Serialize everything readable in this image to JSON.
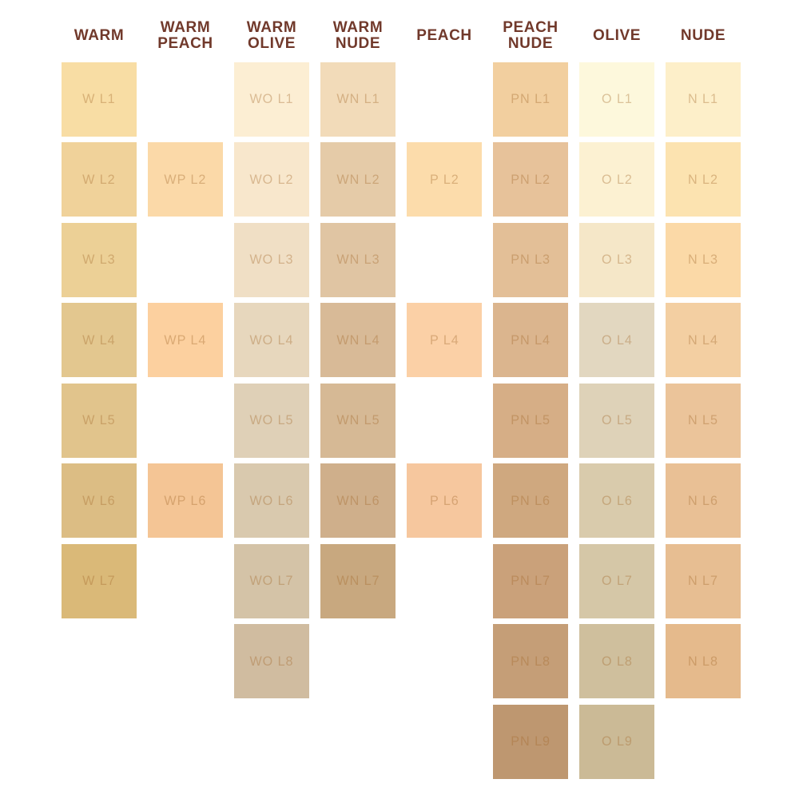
{
  "page": {
    "background": "#FFFFFF",
    "header_text_color": "#71392B",
    "swatch_label_color": "rgba(163,104,44,0.38)"
  },
  "chart_data": {
    "type": "table",
    "description": "Foundation shade swatch grid: 8 undertone family columns, lightness levels L1 (lightest) to L9 (deepest) top to bottom",
    "legend_position": "none",
    "grid": "off",
    "columns": [
      {
        "id": "warm",
        "header": "WARM",
        "swatches": [
          {
            "label": "W L1",
            "level": 1,
            "hex": "#F8DDA4"
          },
          {
            "label": "W L2",
            "level": 2,
            "hex": "#F0D29A"
          },
          {
            "label": "W L3",
            "level": 3,
            "hex": "#ECD096"
          },
          {
            "label": "W L4",
            "level": 4,
            "hex": "#E3C78F"
          },
          {
            "label": "W L5",
            "level": 5,
            "hex": "#E1C48C"
          },
          {
            "label": "W L6",
            "level": 6,
            "hex": "#DCBD84"
          },
          {
            "label": "W L7",
            "level": 7,
            "hex": "#DAB978"
          }
        ]
      },
      {
        "id": "warm-peach",
        "header": "WARM\nPEACH",
        "swatches": [
          {
            "label": "WP L2",
            "level": 2,
            "hex": "#FBD9A8"
          },
          {
            "label": "WP L4",
            "level": 4,
            "hex": "#FCD09F"
          },
          {
            "label": "WP L6",
            "level": 6,
            "hex": "#F4C595"
          }
        ]
      },
      {
        "id": "warm-olive",
        "header": "WARM\nOLIVE",
        "swatches": [
          {
            "label": "WO L1",
            "level": 1,
            "hex": "#FCEED3"
          },
          {
            "label": "WO L2",
            "level": 2,
            "hex": "#F8E7CC"
          },
          {
            "label": "WO L3",
            "level": 3,
            "hex": "#F0DFC5"
          },
          {
            "label": "WO L4",
            "level": 4,
            "hex": "#E7D7BD"
          },
          {
            "label": "WO L5",
            "level": 5,
            "hex": "#DFD0B7"
          },
          {
            "label": "WO L6",
            "level": 6,
            "hex": "#D9C9AE"
          },
          {
            "label": "WO L7",
            "level": 7,
            "hex": "#D4C3A7"
          },
          {
            "label": "WO L8",
            "level": 8,
            "hex": "#D0BCA0"
          }
        ]
      },
      {
        "id": "warm-nude",
        "header": "WARM\nNUDE",
        "swatches": [
          {
            "label": "WN L1",
            "level": 1,
            "hex": "#F2DBB9"
          },
          {
            "label": "WN L2",
            "level": 2,
            "hex": "#E5CBA8"
          },
          {
            "label": "WN L3",
            "level": 3,
            "hex": "#E0C5A3"
          },
          {
            "label": "WN L4",
            "level": 4,
            "hex": "#D8BA97"
          },
          {
            "label": "WN L5",
            "level": 5,
            "hex": "#D6B995"
          },
          {
            "label": "WN L6",
            "level": 6,
            "hex": "#CFAF8B"
          },
          {
            "label": "WN L7",
            "level": 7,
            "hex": "#C8A87F"
          }
        ]
      },
      {
        "id": "peach",
        "header": "PEACH",
        "swatches": [
          {
            "label": "P L2",
            "level": 2,
            "hex": "#FCDCAB"
          },
          {
            "label": "P L4",
            "level": 4,
            "hex": "#FBD0A6"
          },
          {
            "label": "P L6",
            "level": 6,
            "hex": "#F6C79E"
          }
        ]
      },
      {
        "id": "peach-nude",
        "header": "PEACH\nNUDE",
        "swatches": [
          {
            "label": "PN L1",
            "level": 1,
            "hex": "#F2CF9F"
          },
          {
            "label": "PN L2",
            "level": 2,
            "hex": "#E7C29A"
          },
          {
            "label": "PN L3",
            "level": 3,
            "hex": "#E3BF97"
          },
          {
            "label": "PN L4",
            "level": 4,
            "hex": "#DBB58E"
          },
          {
            "label": "PN L5",
            "level": 5,
            "hex": "#D6AE86"
          },
          {
            "label": "PN L6",
            "level": 6,
            "hex": "#CFA87F"
          },
          {
            "label": "PN L7",
            "level": 7,
            "hex": "#CAA17A"
          },
          {
            "label": "PN L8",
            "level": 8,
            "hex": "#C59E77"
          },
          {
            "label": "PN L9",
            "level": 9,
            "hex": "#BE9770"
          }
        ]
      },
      {
        "id": "olive",
        "header": "OLIVE",
        "swatches": [
          {
            "label": "O L1",
            "level": 1,
            "hex": "#FDF8DC"
          },
          {
            "label": "O L2",
            "level": 2,
            "hex": "#FCF1D2"
          },
          {
            "label": "O L3",
            "level": 3,
            "hex": "#F5E7C8"
          },
          {
            "label": "O L4",
            "level": 4,
            "hex": "#E2D7C0"
          },
          {
            "label": "O L5",
            "level": 5,
            "hex": "#DED2B8"
          },
          {
            "label": "O L6",
            "level": 6,
            "hex": "#D9CBAC"
          },
          {
            "label": "O L7",
            "level": 7,
            "hex": "#D5C7A7"
          },
          {
            "label": "O L8",
            "level": 8,
            "hex": "#CFBF9D"
          },
          {
            "label": "O L9",
            "level": 9,
            "hex": "#CBBA96"
          }
        ]
      },
      {
        "id": "nude",
        "header": "NUDE",
        "swatches": [
          {
            "label": "N L1",
            "level": 1,
            "hex": "#FDEFC9"
          },
          {
            "label": "N L2",
            "level": 2,
            "hex": "#FCE3B0"
          },
          {
            "label": "N L3",
            "level": 3,
            "hex": "#FBD9A7"
          },
          {
            "label": "N L4",
            "level": 4,
            "hex": "#F3CFA2"
          },
          {
            "label": "N L5",
            "level": 5,
            "hex": "#EBC49A"
          },
          {
            "label": "N L6",
            "level": 6,
            "hex": "#E9C095"
          },
          {
            "label": "N L7",
            "level": 7,
            "hex": "#E7BE92"
          },
          {
            "label": "N L8",
            "level": 8,
            "hex": "#E5BA8C"
          }
        ]
      }
    ]
  }
}
